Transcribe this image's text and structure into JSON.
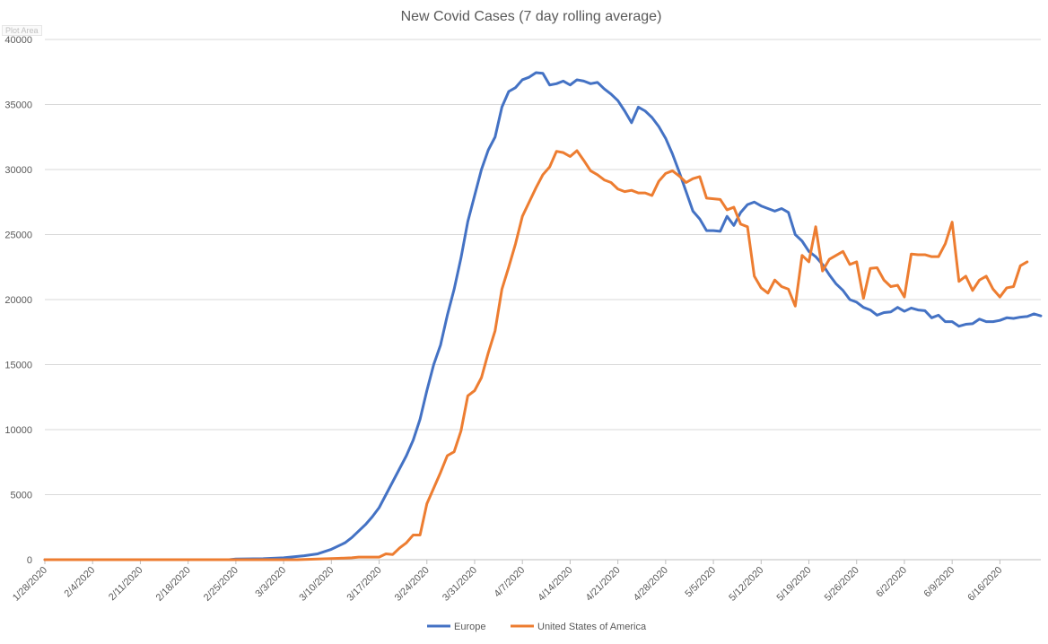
{
  "plot_area_tag": "Plot Area",
  "chart_data": {
    "type": "line",
    "title": "New Covid Cases (7 day rolling average)",
    "xlabel": "",
    "ylabel": "",
    "ylim": [
      0,
      40000
    ],
    "y_ticks": [
      0,
      5000,
      10000,
      15000,
      20000,
      25000,
      30000,
      35000,
      40000
    ],
    "x_tick_labels": [
      "1/28/2020",
      "2/4/2020",
      "2/11/2020",
      "2/18/2020",
      "2/25/2020",
      "3/3/2020",
      "3/10/2020",
      "3/17/2020",
      "3/24/2020",
      "3/31/2020",
      "4/7/2020",
      "4/14/2020",
      "4/21/2020",
      "4/28/2020",
      "5/5/2020",
      "5/12/2020",
      "5/19/2020",
      "5/26/2020",
      "6/2/2020",
      "6/9/2020",
      "6/16/2020"
    ],
    "grid": true,
    "legend_position": "bottom",
    "series": [
      {
        "name": "Europe",
        "color": "#4472C4",
        "points": [
          [
            "2020-01-28",
            0
          ],
          [
            "2020-02-24",
            0
          ],
          [
            "2020-02-25",
            50
          ],
          [
            "2020-02-29",
            80
          ],
          [
            "2020-03-03",
            150
          ],
          [
            "2020-03-06",
            300
          ],
          [
            "2020-03-08",
            450
          ],
          [
            "2020-03-10",
            800
          ],
          [
            "2020-03-12",
            1300
          ],
          [
            "2020-03-13",
            1700
          ],
          [
            "2020-03-14",
            2200
          ],
          [
            "2020-03-15",
            2700
          ],
          [
            "2020-03-16",
            3300
          ],
          [
            "2020-03-17",
            4000
          ],
          [
            "2020-03-18",
            5000
          ],
          [
            "2020-03-19",
            6000
          ],
          [
            "2020-03-20",
            7000
          ],
          [
            "2020-03-21",
            8000
          ],
          [
            "2020-03-22",
            9200
          ],
          [
            "2020-03-23",
            10800
          ],
          [
            "2020-03-24",
            13000
          ],
          [
            "2020-03-25",
            15000
          ],
          [
            "2020-03-26",
            16500
          ],
          [
            "2020-03-27",
            18800
          ],
          [
            "2020-03-28",
            20800
          ],
          [
            "2020-03-29",
            23200
          ],
          [
            "2020-03-30",
            26000
          ],
          [
            "2020-03-31",
            28000
          ],
          [
            "2020-04-01",
            30000
          ],
          [
            "2020-04-02",
            31500
          ],
          [
            "2020-04-03",
            32500
          ],
          [
            "2020-04-04",
            34800
          ],
          [
            "2020-04-05",
            36000
          ],
          [
            "2020-04-06",
            36300
          ],
          [
            "2020-04-07",
            36900
          ],
          [
            "2020-04-08",
            37100
          ],
          [
            "2020-04-09",
            37450
          ],
          [
            "2020-04-10",
            37400
          ],
          [
            "2020-04-11",
            36500
          ],
          [
            "2020-04-12",
            36600
          ],
          [
            "2020-04-13",
            36800
          ],
          [
            "2020-04-14",
            36500
          ],
          [
            "2020-04-15",
            36900
          ],
          [
            "2020-04-16",
            36800
          ],
          [
            "2020-04-17",
            36600
          ],
          [
            "2020-04-18",
            36700
          ],
          [
            "2020-04-19",
            36200
          ],
          [
            "2020-04-20",
            35800
          ],
          [
            "2020-04-21",
            35300
          ],
          [
            "2020-04-22",
            34500
          ],
          [
            "2020-04-23",
            33600
          ],
          [
            "2020-04-24",
            34800
          ],
          [
            "2020-04-25",
            34500
          ],
          [
            "2020-04-26",
            34000
          ],
          [
            "2020-04-27",
            33300
          ],
          [
            "2020-04-28",
            32400
          ],
          [
            "2020-04-29",
            31200
          ],
          [
            "2020-04-30",
            29800
          ],
          [
            "2020-05-01",
            28300
          ],
          [
            "2020-05-02",
            26800
          ],
          [
            "2020-05-03",
            26200
          ],
          [
            "2020-05-04",
            25300
          ],
          [
            "2020-05-05",
            25300
          ],
          [
            "2020-05-06",
            25250
          ],
          [
            "2020-05-07",
            26400
          ],
          [
            "2020-05-08",
            25700
          ],
          [
            "2020-05-09",
            26700
          ],
          [
            "2020-05-10",
            27300
          ],
          [
            "2020-05-11",
            27500
          ],
          [
            "2020-05-12",
            27200
          ],
          [
            "2020-05-13",
            27000
          ],
          [
            "2020-05-14",
            26800
          ],
          [
            "2020-05-15",
            27000
          ],
          [
            "2020-05-16",
            26700
          ],
          [
            "2020-05-17",
            25000
          ],
          [
            "2020-05-18",
            24500
          ],
          [
            "2020-05-19",
            23700
          ],
          [
            "2020-05-20",
            23300
          ],
          [
            "2020-05-21",
            22700
          ],
          [
            "2020-05-22",
            21900
          ],
          [
            "2020-05-23",
            21200
          ],
          [
            "2020-05-24",
            20700
          ],
          [
            "2020-05-25",
            20000
          ],
          [
            "2020-05-26",
            19800
          ],
          [
            "2020-05-27",
            19400
          ],
          [
            "2020-05-28",
            19200
          ],
          [
            "2020-05-29",
            18800
          ],
          [
            "2020-05-30",
            19000
          ],
          [
            "2020-05-31",
            19050
          ],
          [
            "2020-06-01",
            19400
          ],
          [
            "2020-06-02",
            19100
          ],
          [
            "2020-06-03",
            19350
          ],
          [
            "2020-06-04",
            19200
          ],
          [
            "2020-06-05",
            19150
          ],
          [
            "2020-06-06",
            18600
          ],
          [
            "2020-06-07",
            18800
          ],
          [
            "2020-06-08",
            18300
          ],
          [
            "2020-06-09",
            18300
          ],
          [
            "2020-06-10",
            17950
          ],
          [
            "2020-06-11",
            18100
          ],
          [
            "2020-06-12",
            18150
          ],
          [
            "2020-06-13",
            18500
          ],
          [
            "2020-06-14",
            18300
          ],
          [
            "2020-06-15",
            18300
          ],
          [
            "2020-06-16",
            18400
          ],
          [
            "2020-06-17",
            18600
          ],
          [
            "2020-06-18",
            18550
          ],
          [
            "2020-06-19",
            18650
          ],
          [
            "2020-06-20",
            18700
          ],
          [
            "2020-06-21",
            18900
          ],
          [
            "2020-06-22",
            18750
          ]
        ]
      },
      {
        "name": "United States of America",
        "color": "#ED7D31",
        "points": [
          [
            "2020-01-28",
            0
          ],
          [
            "2020-03-05",
            0
          ],
          [
            "2020-03-08",
            50
          ],
          [
            "2020-03-11",
            100
          ],
          [
            "2020-03-13",
            150
          ],
          [
            "2020-03-14",
            200
          ],
          [
            "2020-03-17",
            200
          ],
          [
            "2020-03-18",
            450
          ],
          [
            "2020-03-19",
            400
          ],
          [
            "2020-03-20",
            900
          ],
          [
            "2020-03-21",
            1300
          ],
          [
            "2020-03-22",
            1900
          ],
          [
            "2020-03-23",
            1900
          ],
          [
            "2020-03-24",
            4300
          ],
          [
            "2020-03-25",
            5500
          ],
          [
            "2020-03-26",
            6700
          ],
          [
            "2020-03-27",
            8000
          ],
          [
            "2020-03-28",
            8300
          ],
          [
            "2020-03-29",
            9900
          ],
          [
            "2020-03-30",
            12600
          ],
          [
            "2020-03-31",
            13000
          ],
          [
            "2020-04-01",
            14000
          ],
          [
            "2020-04-02",
            15900
          ],
          [
            "2020-04-03",
            17600
          ],
          [
            "2020-04-04",
            20800
          ],
          [
            "2020-04-05",
            22500
          ],
          [
            "2020-04-06",
            24300
          ],
          [
            "2020-04-07",
            26400
          ],
          [
            "2020-04-08",
            27500
          ],
          [
            "2020-04-09",
            28600
          ],
          [
            "2020-04-10",
            29600
          ],
          [
            "2020-04-11",
            30200
          ],
          [
            "2020-04-12",
            31400
          ],
          [
            "2020-04-13",
            31300
          ],
          [
            "2020-04-14",
            31000
          ],
          [
            "2020-04-15",
            31450
          ],
          [
            "2020-04-16",
            30700
          ],
          [
            "2020-04-17",
            29900
          ],
          [
            "2020-04-18",
            29600
          ],
          [
            "2020-04-19",
            29200
          ],
          [
            "2020-04-20",
            29000
          ],
          [
            "2020-04-21",
            28500
          ],
          [
            "2020-04-22",
            28300
          ],
          [
            "2020-04-23",
            28400
          ],
          [
            "2020-04-24",
            28200
          ],
          [
            "2020-04-25",
            28200
          ],
          [
            "2020-04-26",
            28000
          ],
          [
            "2020-04-27",
            29100
          ],
          [
            "2020-04-28",
            29700
          ],
          [
            "2020-04-29",
            29900
          ],
          [
            "2020-04-30",
            29500
          ],
          [
            "2020-05-01",
            29000
          ],
          [
            "2020-05-02",
            29300
          ],
          [
            "2020-05-03",
            29450
          ],
          [
            "2020-05-04",
            27800
          ],
          [
            "2020-05-05",
            27750
          ],
          [
            "2020-05-06",
            27700
          ],
          [
            "2020-05-07",
            26900
          ],
          [
            "2020-05-08",
            27100
          ],
          [
            "2020-05-09",
            25800
          ],
          [
            "2020-05-10",
            25600
          ],
          [
            "2020-05-11",
            21800
          ],
          [
            "2020-05-12",
            20900
          ],
          [
            "2020-05-13",
            20500
          ],
          [
            "2020-05-14",
            21500
          ],
          [
            "2020-05-15",
            21000
          ],
          [
            "2020-05-16",
            20800
          ],
          [
            "2020-05-17",
            19500
          ],
          [
            "2020-05-18",
            23400
          ],
          [
            "2020-05-19",
            22900
          ],
          [
            "2020-05-20",
            25600
          ],
          [
            "2020-05-21",
            22200
          ],
          [
            "2020-05-22",
            23100
          ],
          [
            "2020-05-23",
            23400
          ],
          [
            "2020-05-24",
            23700
          ],
          [
            "2020-05-25",
            22700
          ],
          [
            "2020-05-26",
            22900
          ],
          [
            "2020-05-27",
            20100
          ],
          [
            "2020-05-28",
            22400
          ],
          [
            "2020-05-29",
            22450
          ],
          [
            "2020-05-30",
            21500
          ],
          [
            "2020-05-31",
            21000
          ],
          [
            "2020-06-01",
            21100
          ],
          [
            "2020-06-02",
            20200
          ],
          [
            "2020-06-03",
            23500
          ],
          [
            "2020-06-04",
            23450
          ],
          [
            "2020-06-05",
            23450
          ],
          [
            "2020-06-06",
            23300
          ],
          [
            "2020-06-07",
            23300
          ],
          [
            "2020-06-08",
            24300
          ],
          [
            "2020-06-09",
            25950
          ],
          [
            "2020-06-10",
            21400
          ],
          [
            "2020-06-11",
            21800
          ],
          [
            "2020-06-12",
            20700
          ],
          [
            "2020-06-13",
            21500
          ],
          [
            "2020-06-14",
            21800
          ],
          [
            "2020-06-15",
            20800
          ],
          [
            "2020-06-16",
            20200
          ],
          [
            "2020-06-17",
            20900
          ],
          [
            "2020-06-18",
            21000
          ],
          [
            "2020-06-19",
            22600
          ],
          [
            "2020-06-20",
            22900
          ]
        ]
      }
    ]
  }
}
